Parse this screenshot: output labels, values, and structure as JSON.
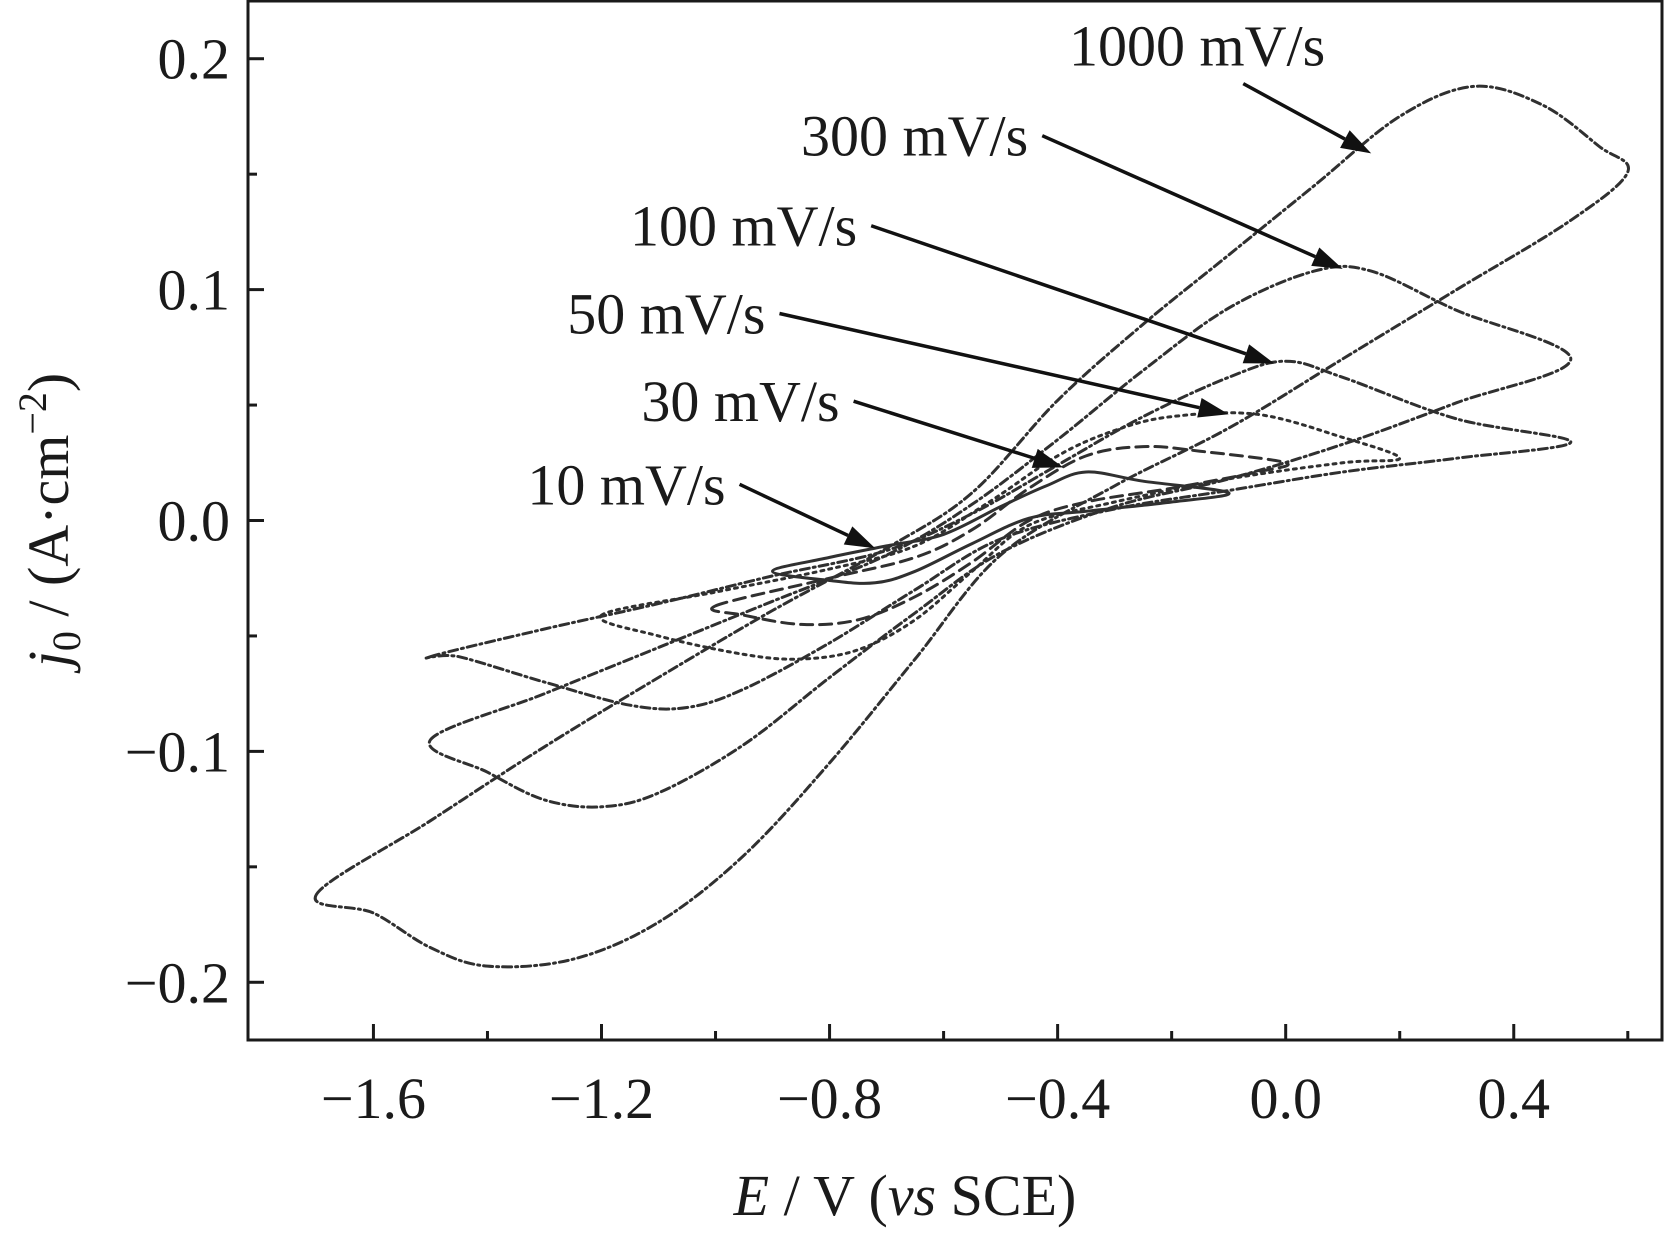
{
  "chart_data": {
    "type": "line",
    "xlabel_parts": [
      "E",
      " / V (",
      "vs",
      " SCE)"
    ],
    "ylabel_parts": [
      "j",
      "0",
      " / (A·cm",
      "−2",
      ")"
    ],
    "xlim": [
      -1.82,
      0.66
    ],
    "ylim": [
      -0.225,
      0.225
    ],
    "x_ticks": [
      {
        "value": -1.6,
        "label": "−1.6"
      },
      {
        "value": -1.2,
        "label": "−1.2"
      },
      {
        "value": -0.8,
        "label": "−0.8"
      },
      {
        "value": -0.4,
        "label": "−0.4"
      },
      {
        "value": 0.0,
        "label": "0.0"
      },
      {
        "value": 0.4,
        "label": "0.4"
      }
    ],
    "x_minor_ticks": [
      -1.4,
      -1.0,
      -0.6,
      -0.2,
      0.2,
      0.6
    ],
    "y_ticks": [
      {
        "value": 0.2,
        "label": "0.2"
      },
      {
        "value": 0.1,
        "label": "0.1"
      },
      {
        "value": 0.0,
        "label": "0.0"
      },
      {
        "value": -0.1,
        "label": "−0.1"
      },
      {
        "value": -0.2,
        "label": "−0.2"
      }
    ],
    "y_minor_ticks": [
      0.15,
      0.05,
      -0.05,
      -0.15
    ],
    "grid": false,
    "series": [
      {
        "name": "10 mV/s",
        "dash": "solid",
        "annotation": {
          "text_at": [
            -1.33,
            0.007
          ],
          "arrow_to": [
            -0.72,
            -0.012
          ]
        },
        "points": [
          [
            -0.9,
            -0.022
          ],
          [
            -0.8,
            -0.016
          ],
          [
            -0.7,
            -0.011
          ],
          [
            -0.6,
            -0.006
          ],
          [
            -0.5,
            0.006
          ],
          [
            -0.42,
            0.015
          ],
          [
            -0.35,
            0.021
          ],
          [
            -0.25,
            0.017
          ],
          [
            -0.1,
            0.012
          ],
          [
            -0.2,
            0.008
          ],
          [
            -0.35,
            0.004
          ],
          [
            -0.45,
            0.001
          ],
          [
            -0.55,
            -0.01
          ],
          [
            -0.65,
            -0.022
          ],
          [
            -0.72,
            -0.027
          ],
          [
            -0.8,
            -0.026
          ],
          [
            -0.9,
            -0.022
          ]
        ]
      },
      {
        "name": "30 mV/s",
        "dash": "dashed",
        "annotation": {
          "text_at": [
            -1.13,
            0.043
          ],
          "arrow_to": [
            -0.39,
            0.023
          ]
        },
        "points": [
          [
            -1.0,
            -0.037
          ],
          [
            -0.8,
            -0.025
          ],
          [
            -0.65,
            -0.016
          ],
          [
            -0.55,
            -0.004
          ],
          [
            -0.45,
            0.014
          ],
          [
            -0.35,
            0.028
          ],
          [
            -0.25,
            0.032
          ],
          [
            -0.15,
            0.03
          ],
          [
            0.0,
            0.025
          ],
          [
            -0.05,
            0.021
          ],
          [
            -0.2,
            0.014
          ],
          [
            -0.35,
            0.008
          ],
          [
            -0.45,
            0.0
          ],
          [
            -0.55,
            -0.018
          ],
          [
            -0.65,
            -0.033
          ],
          [
            -0.75,
            -0.043
          ],
          [
            -0.85,
            -0.045
          ],
          [
            -0.95,
            -0.041
          ],
          [
            -1.0,
            -0.037
          ]
        ]
      },
      {
        "name": "50 mV/s",
        "dash": "dotted",
        "annotation": {
          "text_at": [
            -1.26,
            0.081
          ],
          "arrow_to": [
            -0.1,
            0.046
          ]
        },
        "points": [
          [
            -1.2,
            -0.041
          ],
          [
            -1.0,
            -0.031
          ],
          [
            -0.8,
            -0.021
          ],
          [
            -0.65,
            -0.011
          ],
          [
            -0.52,
            0.008
          ],
          [
            -0.4,
            0.028
          ],
          [
            -0.3,
            0.039
          ],
          [
            -0.2,
            0.045
          ],
          [
            -0.05,
            0.046
          ],
          [
            0.1,
            0.036
          ],
          [
            0.2,
            0.027
          ],
          [
            0.1,
            0.025
          ],
          [
            -0.1,
            0.018
          ],
          [
            -0.3,
            0.008
          ],
          [
            -0.45,
            -0.002
          ],
          [
            -0.55,
            -0.022
          ],
          [
            -0.65,
            -0.043
          ],
          [
            -0.75,
            -0.056
          ],
          [
            -0.85,
            -0.06
          ],
          [
            -0.95,
            -0.058
          ],
          [
            -1.1,
            -0.05
          ],
          [
            -1.2,
            -0.041
          ]
        ]
      },
      {
        "name": "100 mV/s",
        "dash": "dashdot",
        "annotation": {
          "text_at": [
            -1.15,
            0.119
          ],
          "arrow_to": [
            -0.02,
            0.068
          ]
        },
        "points": [
          [
            -1.5,
            -0.059
          ],
          [
            -1.3,
            -0.047
          ],
          [
            -1.1,
            -0.036
          ],
          [
            -0.9,
            -0.024
          ],
          [
            -0.7,
            -0.013
          ],
          [
            -0.55,
            0.003
          ],
          [
            -0.4,
            0.024
          ],
          [
            -0.25,
            0.045
          ],
          [
            -0.1,
            0.062
          ],
          [
            0.0,
            0.069
          ],
          [
            0.1,
            0.062
          ],
          [
            0.3,
            0.044
          ],
          [
            0.5,
            0.034
          ],
          [
            0.3,
            0.027
          ],
          [
            0.1,
            0.021
          ],
          [
            -0.1,
            0.013
          ],
          [
            -0.3,
            0.005
          ],
          [
            -0.5,
            -0.008
          ],
          [
            -0.65,
            -0.03
          ],
          [
            -0.8,
            -0.053
          ],
          [
            -0.95,
            -0.073
          ],
          [
            -1.05,
            -0.081
          ],
          [
            -1.15,
            -0.08
          ],
          [
            -1.3,
            -0.07
          ],
          [
            -1.45,
            -0.059
          ],
          [
            -1.5,
            -0.059
          ]
        ]
      },
      {
        "name": "300 mV/s",
        "dash": "dashdot",
        "annotation": {
          "text_at": [
            -0.85,
            0.158
          ],
          "arrow_to": [
            0.1,
            0.109
          ]
        },
        "points": [
          [
            -1.5,
            -0.095
          ],
          [
            -1.3,
            -0.075
          ],
          [
            -1.1,
            -0.055
          ],
          [
            -0.9,
            -0.035
          ],
          [
            -0.7,
            -0.015
          ],
          [
            -0.55,
            0.007
          ],
          [
            -0.4,
            0.035
          ],
          [
            -0.25,
            0.065
          ],
          [
            -0.1,
            0.092
          ],
          [
            0.05,
            0.108
          ],
          [
            0.15,
            0.108
          ],
          [
            0.3,
            0.091
          ],
          [
            0.5,
            0.07
          ],
          [
            0.3,
            0.051
          ],
          [
            0.1,
            0.033
          ],
          [
            -0.1,
            0.018
          ],
          [
            -0.3,
            0.006
          ],
          [
            -0.5,
            -0.014
          ],
          [
            -0.65,
            -0.04
          ],
          [
            -0.8,
            -0.068
          ],
          [
            -0.95,
            -0.097
          ],
          [
            -1.1,
            -0.118
          ],
          [
            -1.2,
            -0.124
          ],
          [
            -1.3,
            -0.121
          ],
          [
            -1.4,
            -0.109
          ],
          [
            -1.5,
            -0.095
          ]
        ]
      },
      {
        "name": "1000 mV/s",
        "dash": "dashdot",
        "annotation": {
          "text_at": [
            -0.38,
            0.197
          ],
          "arrow_to": [
            0.15,
            0.159
          ]
        },
        "points": [
          [
            -1.7,
            -0.162
          ],
          [
            -1.5,
            -0.13
          ],
          [
            -1.3,
            -0.098
          ],
          [
            -1.1,
            -0.068
          ],
          [
            -0.9,
            -0.039
          ],
          [
            -0.7,
            -0.012
          ],
          [
            -0.55,
            0.012
          ],
          [
            -0.4,
            0.052
          ],
          [
            -0.25,
            0.085
          ],
          [
            -0.1,
            0.115
          ],
          [
            0.05,
            0.145
          ],
          [
            0.2,
            0.175
          ],
          [
            0.33,
            0.188
          ],
          [
            0.45,
            0.18
          ],
          [
            0.55,
            0.162
          ],
          [
            0.6,
            0.151
          ],
          [
            0.5,
            0.13
          ],
          [
            0.3,
            0.1
          ],
          [
            0.1,
            0.07
          ],
          [
            -0.1,
            0.04
          ],
          [
            -0.3,
            0.015
          ],
          [
            -0.5,
            -0.015
          ],
          [
            -0.65,
            -0.06
          ],
          [
            -0.8,
            -0.105
          ],
          [
            -0.95,
            -0.145
          ],
          [
            -1.1,
            -0.174
          ],
          [
            -1.25,
            -0.19
          ],
          [
            -1.4,
            -0.193
          ],
          [
            -1.5,
            -0.185
          ],
          [
            -1.6,
            -0.17
          ],
          [
            -1.7,
            -0.162
          ]
        ]
      }
    ]
  }
}
